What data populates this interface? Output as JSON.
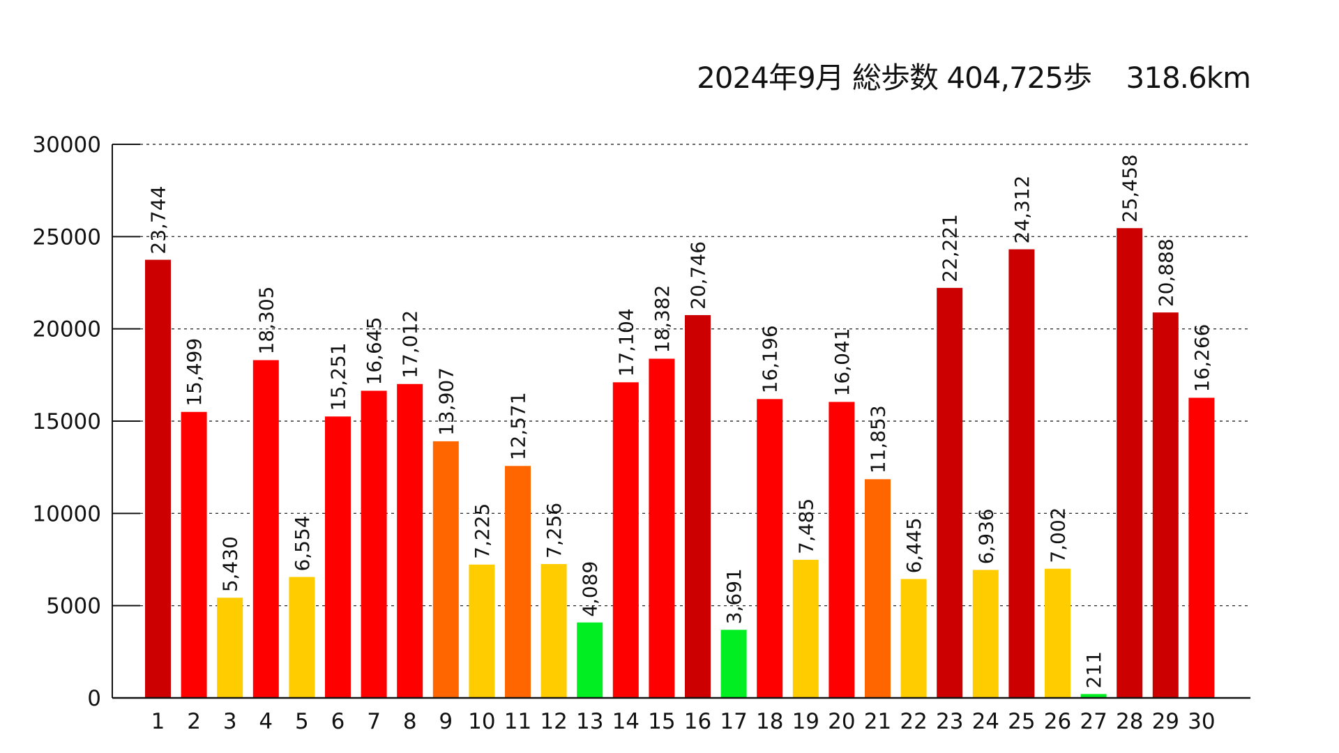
{
  "title": {
    "period": "2024年9月",
    "steps_label": "総歩数",
    "steps_total": "404,725歩",
    "distance": "318.6km"
  },
  "chart_data": {
    "type": "bar",
    "title": "2024年9月 総歩数 404,725歩 318.6km",
    "xlabel": "",
    "ylabel": "",
    "ylim": [
      0,
      30000
    ],
    "yticks": [
      0,
      5000,
      10000,
      15000,
      20000,
      25000,
      30000
    ],
    "grid": "horizontal-dotted",
    "legend": "none",
    "categories": [
      "1",
      "2",
      "3",
      "4",
      "5",
      "6",
      "7",
      "8",
      "9",
      "10",
      "11",
      "12",
      "13",
      "14",
      "15",
      "16",
      "17",
      "18",
      "19",
      "20",
      "21",
      "22",
      "23",
      "24",
      "25",
      "26",
      "27",
      "28",
      "29",
      "30"
    ],
    "values": [
      23744,
      15499,
      5430,
      18305,
      6554,
      15251,
      16645,
      17012,
      13907,
      7225,
      12571,
      7256,
      4089,
      17104,
      18382,
      20746,
      3691,
      16196,
      7485,
      16041,
      11853,
      6445,
      22221,
      6936,
      24312,
      7002,
      211,
      25458,
      20888,
      16266
    ],
    "value_labels": [
      "23,744",
      "15,499",
      "5,430",
      "18,305",
      "6,554",
      "15,251",
      "16,645",
      "17,012",
      "13,907",
      "7,225",
      "12,571",
      "7,256",
      "4,089",
      "17,104",
      "18,382",
      "20,746",
      "3,691",
      "16,196",
      "7,485",
      "16,041",
      "11,853",
      "6,445",
      "22,221",
      "6,936",
      "24,312",
      "7,002",
      "211",
      "25,458",
      "20,888",
      "16,266"
    ],
    "color_scale": [
      {
        "min": 20000,
        "color": "#cc0000"
      },
      {
        "min": 15000,
        "color": "#ff0000"
      },
      {
        "min": 10000,
        "color": "#ff6600"
      },
      {
        "min": 5000,
        "color": "#ffcc00"
      },
      {
        "min": 0,
        "color": "#00ee22"
      }
    ]
  }
}
